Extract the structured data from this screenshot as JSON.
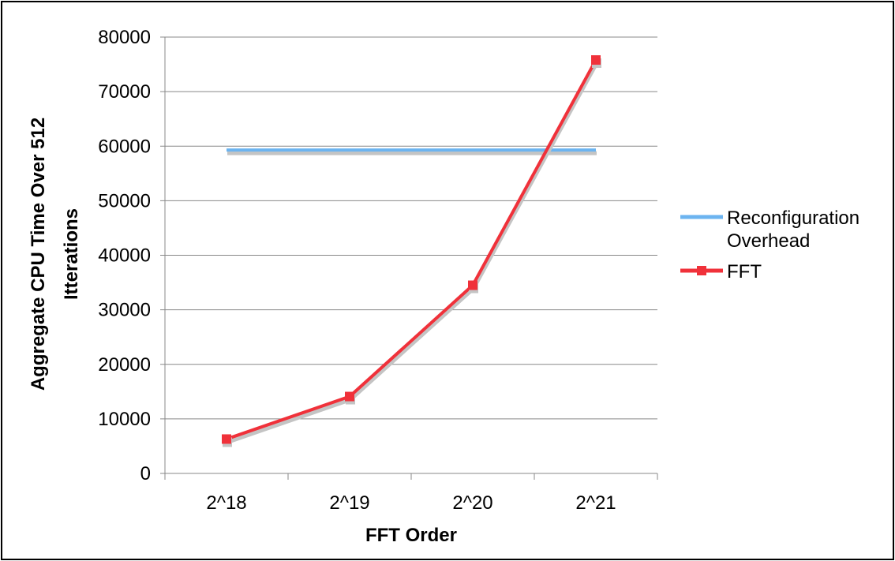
{
  "chart_data": {
    "type": "line",
    "title": "",
    "xlabel": "FFT Order",
    "ylabel": "Aggregate CPU Time Over 512 Itterations",
    "ylabel_lines": [
      "Aggregate CPU Time Over 512",
      "Itterations"
    ],
    "categories": [
      "2^18",
      "2^19",
      "2^20",
      "2^21"
    ],
    "ylim": [
      0,
      80000
    ],
    "yticks": [
      0,
      10000,
      20000,
      30000,
      40000,
      50000,
      60000,
      70000,
      80000
    ],
    "ytick_labels": [
      "0",
      "10000",
      "20000",
      "30000",
      "40000",
      "50000",
      "60000",
      "70000",
      "80000"
    ],
    "grid": true,
    "legend_position": "right",
    "series": [
      {
        "name": "Reconfiguration Overhead",
        "name_lines": [
          "Reconfiguration",
          "Overhead"
        ],
        "color": "#6cb4f0",
        "marker": "none",
        "values": [
          59300,
          59300,
          59300,
          59300
        ]
      },
      {
        "name": "FFT",
        "name_lines": [
          "FFT"
        ],
        "color": "#f0313a",
        "marker": "square",
        "values": [
          6300,
          14100,
          34500,
          75800
        ]
      }
    ]
  }
}
